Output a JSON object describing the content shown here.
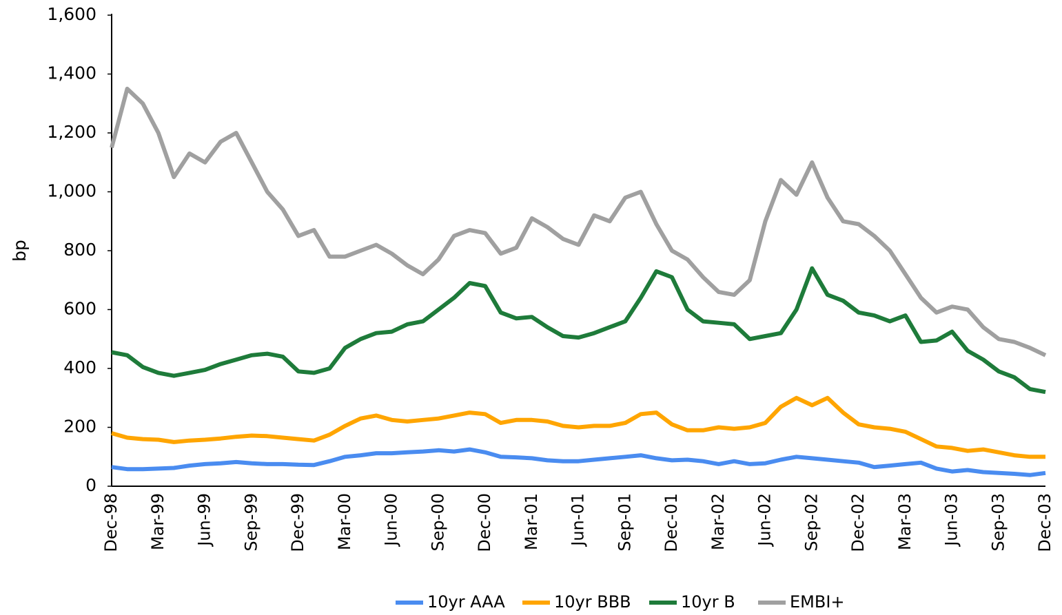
{
  "chart_data": {
    "type": "line",
    "ylabel": "bp",
    "categories": [
      "Dec-98",
      null,
      null,
      "Mar-99",
      null,
      null,
      "Jun-99",
      null,
      null,
      "Sep-99",
      null,
      null,
      "Dec-99",
      null,
      null,
      "Mar-00",
      null,
      null,
      "Jun-00",
      null,
      null,
      "Sep-00",
      null,
      null,
      "Dec-00",
      null,
      null,
      "Mar-01",
      null,
      null,
      "Jun-01",
      null,
      null,
      "Sep-01",
      null,
      null,
      "Dec-01",
      null,
      null,
      "Mar-02",
      null,
      null,
      "Jun-02",
      null,
      null,
      "Sep-02",
      null,
      null,
      "Dec-02",
      null,
      null,
      "Mar-03",
      null,
      null,
      "Jun-03",
      null,
      null,
      "Sep-03",
      null,
      null,
      "Dec-03"
    ],
    "series": [
      {
        "name": "10yr AAA",
        "color": "#4a8cf0",
        "values": [
          65,
          58,
          58,
          60,
          62,
          70,
          75,
          78,
          82,
          78,
          75,
          75,
          73,
          72,
          85,
          100,
          105,
          112,
          112,
          115,
          118,
          122,
          118,
          125,
          115,
          100,
          98,
          95,
          88,
          85,
          85,
          90,
          95,
          100,
          105,
          95,
          88,
          90,
          85,
          75,
          85,
          75,
          78,
          90,
          100,
          95,
          90,
          85,
          80,
          65,
          70,
          75,
          80,
          60,
          50,
          55,
          48,
          45,
          42,
          38,
          45
        ]
      },
      {
        "name": "10yr BBB",
        "color": "#ffa500",
        "values": [
          180,
          165,
          160,
          158,
          150,
          155,
          158,
          162,
          168,
          172,
          170,
          165,
          160,
          155,
          175,
          205,
          230,
          240,
          225,
          220,
          225,
          230,
          240,
          250,
          245,
          215,
          225,
          225,
          220,
          205,
          200,
          205,
          205,
          215,
          245,
          250,
          210,
          190,
          190,
          200,
          195,
          200,
          215,
          270,
          300,
          275,
          300,
          250,
          210,
          200,
          195,
          185,
          160,
          135,
          130,
          120,
          125,
          115,
          105,
          100,
          100
        ]
      },
      {
        "name": "10yr B",
        "color": "#1e7b3a",
        "values": [
          455,
          445,
          405,
          385,
          375,
          385,
          395,
          415,
          430,
          445,
          450,
          440,
          390,
          385,
          400,
          470,
          500,
          520,
          525,
          550,
          560,
          600,
          640,
          690,
          680,
          590,
          570,
          575,
          540,
          510,
          505,
          520,
          540,
          560,
          640,
          730,
          710,
          600,
          560,
          555,
          550,
          500,
          510,
          520,
          600,
          740,
          650,
          630,
          590,
          580,
          560,
          580,
          490,
          495,
          525,
          460,
          430,
          390,
          370,
          330,
          320
        ]
      },
      {
        "name": "EMBI+",
        "color": "#a0a0a0",
        "values": [
          1150,
          1350,
          1300,
          1200,
          1050,
          1130,
          1100,
          1170,
          1200,
          1100,
          1000,
          940,
          850,
          870,
          780,
          780,
          800,
          820,
          790,
          750,
          720,
          770,
          850,
          870,
          860,
          790,
          810,
          910,
          880,
          840,
          820,
          920,
          900,
          980,
          1000,
          890,
          800,
          770,
          710,
          660,
          650,
          700,
          900,
          1040,
          990,
          1100,
          980,
          900,
          890,
          850,
          800,
          720,
          640,
          590,
          610,
          600,
          540,
          500,
          490,
          470,
          445
        ]
      }
    ],
    "ylim": [
      0,
      1600
    ],
    "yticks": [
      0,
      200,
      400,
      600,
      800,
      {
        "value": 1000,
        "label": "1,000"
      },
      {
        "value": 1200,
        "label": "1,200"
      },
      {
        "value": 1400,
        "label": "1,400"
      },
      {
        "value": 1600,
        "label": "1,600"
      }
    ],
    "grid": false,
    "legend": "bottom"
  }
}
